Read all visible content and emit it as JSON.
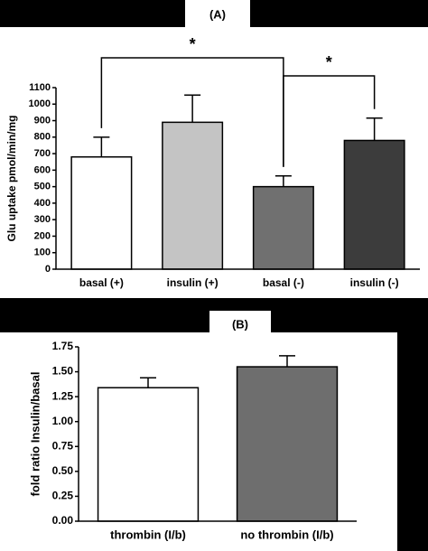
{
  "chart_data": [
    {
      "type": "bar",
      "panel_label": "(A)",
      "y_label": "Glu uptake pmol/min/mg",
      "categories": [
        "basal (+)",
        "insulin (+)",
        "basal (-)",
        "insulin (-)"
      ],
      "series": [
        {
          "values": [
            680,
            890,
            500,
            780
          ],
          "errors": [
            120,
            165,
            65,
            135
          ],
          "colors": [
            "#ffffff",
            "#c4c4c4",
            "#707070",
            "#3c3c3c"
          ]
        }
      ],
      "ylim": [
        0,
        1100
      ],
      "yticks": [
        0,
        100,
        200,
        300,
        400,
        500,
        600,
        700,
        800,
        900,
        1000,
        1100
      ],
      "annotations": [
        "*",
        "*"
      ]
    },
    {
      "type": "bar",
      "panel_label": "(B)",
      "y_label": "fold ratio Insulin/basal",
      "categories": [
        "thrombin (I/b)",
        "no thrombin (I/b)"
      ],
      "series": [
        {
          "values": [
            1.34,
            1.55
          ],
          "errors": [
            0.1,
            0.11
          ],
          "colors": [
            "#ffffff",
            "#6e6e6e"
          ]
        }
      ],
      "ylim": [
        0,
        1.75
      ],
      "yticks": [
        {
          "value": 0,
          "label": "0.00"
        },
        {
          "value": 0.25,
          "label": "0.25"
        },
        {
          "value": 0.5,
          "label": "0.50"
        },
        {
          "value": 0.75,
          "label": "0.75"
        },
        {
          "value": 1,
          "label": "1.00"
        },
        {
          "value": 1.25,
          "label": "1.25"
        },
        {
          "value": 1.5,
          "label": "1.50"
        },
        {
          "value": 1.75,
          "label": "1.75"
        }
      ]
    }
  ]
}
